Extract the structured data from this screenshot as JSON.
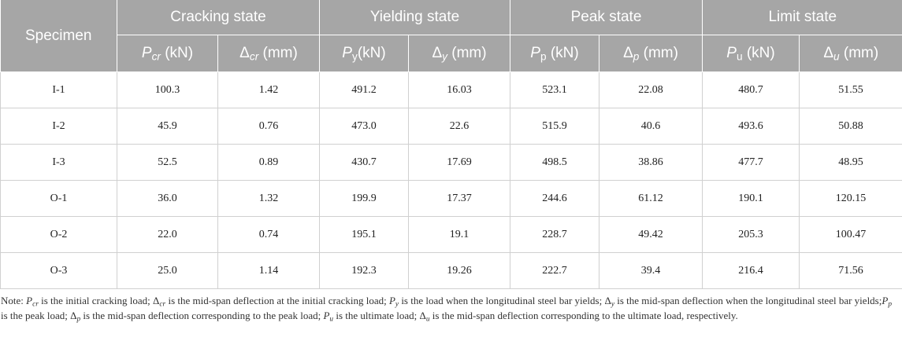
{
  "table": {
    "groups": [
      "Specimen",
      "Cracking state",
      "Yielding state",
      "Peak state",
      "Limit state"
    ],
    "subheaders": [
      {
        "sym": "P",
        "sub": "cr",
        "unit": " (kN)",
        "italic_sub": true
      },
      {
        "sym": "Δ",
        "sub": "cr",
        "unit": " (mm)",
        "italic_sub": true
      },
      {
        "sym": "P",
        "sub": "y",
        "unit": "(kN)",
        "italic_sub": false
      },
      {
        "sym": "Δ",
        "sub": "y",
        "unit": " (mm)",
        "italic_sub": true
      },
      {
        "sym": "P",
        "sub": "p",
        "unit": " (kN)",
        "italic_sub": false
      },
      {
        "sym": "Δ",
        "sub": "p",
        "unit": " (mm)",
        "italic_sub": true
      },
      {
        "sym": "P",
        "sub": "u",
        "unit": " (kN)",
        "italic_sub": false
      },
      {
        "sym": "Δ",
        "sub": "u",
        "unit": " (mm)",
        "italic_sub": true
      }
    ],
    "rows": [
      [
        "I-1",
        "100.3",
        "1.42",
        "491.2",
        "16.03",
        "523.1",
        "22.08",
        "480.7",
        "51.55"
      ],
      [
        "I-2",
        "45.9",
        "0.76",
        "473.0",
        "22.6",
        "515.9",
        "40.6",
        "493.6",
        "50.88"
      ],
      [
        "I-3",
        "52.5",
        "0.89",
        "430.7",
        "17.69",
        "498.5",
        "38.86",
        "477.7",
        "48.95"
      ],
      [
        "O-1",
        "36.0",
        "1.32",
        "199.9",
        "17.37",
        "244.6",
        "61.12",
        "190.1",
        "120.15"
      ],
      [
        "O-2",
        "22.0",
        "0.74",
        "195.1",
        "19.1",
        "228.7",
        "49.42",
        "205.3",
        "100.47"
      ],
      [
        "O-3",
        "25.0",
        "1.14",
        "192.3",
        "19.26",
        "222.7",
        "39.4",
        "216.4",
        "71.56"
      ]
    ]
  },
  "note": [
    {
      "t": "Note: "
    },
    {
      "t": "P",
      "i": true
    },
    {
      "t": "cr",
      "sub": true,
      "i": true
    },
    {
      "t": " is the initial cracking load; "
    },
    {
      "t": "Δ"
    },
    {
      "t": "cr",
      "sub": true,
      "i": true
    },
    {
      "t": " is the mid-span deflection at the initial cracking load; "
    },
    {
      "t": "P",
      "i": true
    },
    {
      "t": "y",
      "sub": true,
      "i": true
    },
    {
      "t": " is the load when the longitudinal steel bar yields; "
    },
    {
      "t": "Δ"
    },
    {
      "t": "y",
      "sub": true,
      "i": true
    },
    {
      "t": " is the mid-span deflection when the longitudinal steel bar yields;"
    },
    {
      "t": "P",
      "i": true
    },
    {
      "t": "p",
      "sub": true,
      "i": true
    },
    {
      "t": " is the peak load; "
    },
    {
      "t": "Δ"
    },
    {
      "t": "p",
      "sub": true,
      "i": true
    },
    {
      "t": " is the mid-span deflection corresponding to the peak load; "
    },
    {
      "t": "P",
      "i": true
    },
    {
      "t": "u",
      "sub": true,
      "i": true
    },
    {
      "t": " is the ultimate load; "
    },
    {
      "t": "Δ"
    },
    {
      "t": "u",
      "sub": true,
      "i": true
    },
    {
      "t": " is the mid-span deflection corresponding to the ultimate load, respectively."
    }
  ]
}
